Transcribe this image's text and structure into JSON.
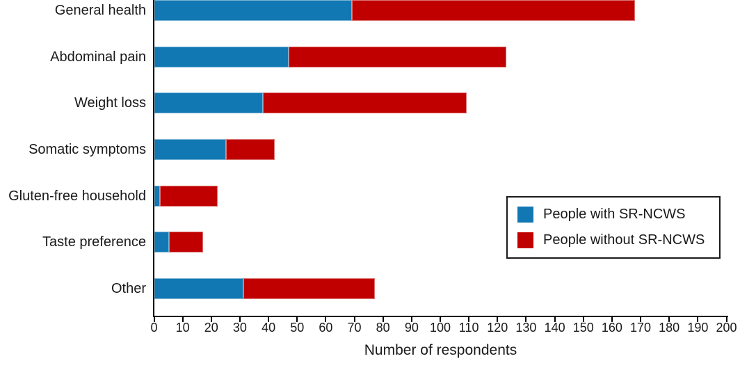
{
  "figure": {
    "type": "horizontal-stacked-bar-chart"
  },
  "axis": {
    "xlabel": "Number of respondents",
    "xticks": [
      0,
      10,
      20,
      30,
      40,
      50,
      60,
      70,
      80,
      90,
      100,
      110,
      120,
      130,
      140,
      150,
      160,
      170,
      180,
      190,
      200
    ]
  },
  "legend": {
    "items": [
      {
        "label": "People with SR-NCWS",
        "color": "#1278b3"
      },
      {
        "label": "People without SR-NCWS",
        "color": "#c00000"
      }
    ]
  },
  "colors": {
    "blue": "#1278b3",
    "red": "#c00000",
    "axis": "#000000",
    "text": "#1a1a1a"
  },
  "chart_data": {
    "type": "bar",
    "orientation": "horizontal",
    "stacked": true,
    "categories": [
      "General health",
      "Abdominal pain",
      "Weight loss",
      "Somatic symptoms",
      "Gluten-free household",
      "Taste preference",
      "Other"
    ],
    "series": [
      {
        "name": "People with SR-NCWS",
        "color": "#1278b3",
        "values": [
          69,
          47,
          38,
          25,
          2,
          5,
          31
        ]
      },
      {
        "name": "People without SR-NCWS",
        "color": "#c00000",
        "values": [
          99,
          76,
          71,
          17,
          20,
          12,
          46
        ]
      }
    ],
    "stacked_totals": [
      168,
      123,
      109,
      42,
      22,
      17,
      77
    ],
    "title": "",
    "xlabel": "Number of respondents",
    "ylabel": "",
    "xlim": [
      0,
      200
    ],
    "xtick_step": 10,
    "grid": false,
    "legend_position": "right-middle-inside"
  }
}
